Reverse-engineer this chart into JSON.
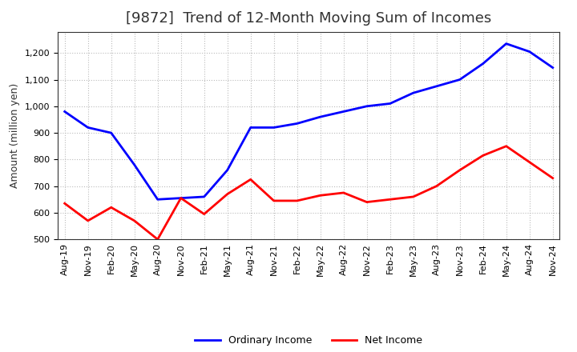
{
  "title": "[9872]  Trend of 12-Month Moving Sum of Incomes",
  "ylabel": "Amount (million yen)",
  "xlabels": [
    "Aug-19",
    "Nov-19",
    "Feb-20",
    "May-20",
    "Aug-20",
    "Nov-20",
    "Feb-21",
    "May-21",
    "Aug-21",
    "Nov-21",
    "Feb-22",
    "May-22",
    "Aug-22",
    "Nov-22",
    "Feb-23",
    "May-23",
    "Aug-23",
    "Nov-23",
    "Feb-24",
    "May-24",
    "Aug-24",
    "Nov-24"
  ],
  "ordinary_income": [
    980,
    920,
    900,
    780,
    650,
    655,
    660,
    760,
    920,
    920,
    935,
    960,
    980,
    1000,
    1010,
    1050,
    1075,
    1100,
    1160,
    1235,
    1205,
    1145
  ],
  "net_income": [
    635,
    570,
    620,
    570,
    500,
    655,
    595,
    670,
    725,
    645,
    645,
    665,
    675,
    640,
    650,
    660,
    700,
    760,
    815,
    850,
    790,
    730
  ],
  "ordinary_color": "#0000FF",
  "net_color": "#FF0000",
  "ylim": [
    500,
    1280
  ],
  "yticks": [
    500,
    600,
    700,
    800,
    900,
    1000,
    1100,
    1200
  ],
  "background_color": "#FFFFFF",
  "grid_color": "#BBBBBB",
  "title_fontsize": 13,
  "axis_fontsize": 9,
  "tick_fontsize": 8,
  "legend_fontsize": 9
}
